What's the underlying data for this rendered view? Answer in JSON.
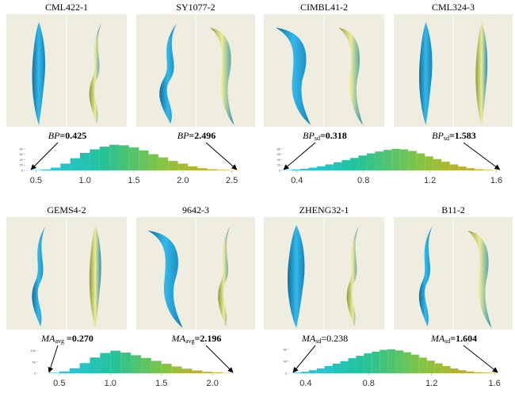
{
  "figure": {
    "quadrants": [
      {
        "panels": [
          {
            "title": "CML422-1"
          },
          {
            "title": "SY1077-2"
          }
        ],
        "labels": [
          {
            "symbol": "BP",
            "value": "=0.425",
            "bold": true
          },
          {
            "symbol": "BP",
            "value": "=2.496",
            "bold": true
          }
        ]
      },
      {
        "panels": [
          {
            "title": "CIMBL41-2"
          },
          {
            "title": "CML324-3"
          }
        ],
        "labels": [
          {
            "symbol": "BP",
            "subscript": "sd",
            "value": "=0.318",
            "bold": true
          },
          {
            "symbol": "BP",
            "subscript": "sd",
            "value": "=1.583",
            "bold": true
          }
        ]
      },
      {
        "panels": [
          {
            "title": "GEMS4-2"
          },
          {
            "title": "9642-3"
          }
        ],
        "labels": [
          {
            "symbol": "MA",
            "subscript": "avg",
            "value": " =0.270",
            "bold": true
          },
          {
            "symbol": "MA",
            "subscript": "avg",
            "value": "=2.196",
            "bold": true
          }
        ]
      },
      {
        "panels": [
          {
            "title": "ZHENG32-1"
          },
          {
            "title": "B11-2"
          }
        ],
        "labels": [
          {
            "symbol": "MA",
            "subscript": "sd",
            "value": "=0.238",
            "bold": false
          },
          {
            "symbol": "MA",
            "subscript": "sd",
            "value": "=1.604",
            "bold": true
          }
        ]
      }
    ]
  },
  "chart_data": [
    {
      "type": "histogram",
      "bins": [
        0.45,
        0.55,
        0.65,
        0.75,
        0.85,
        0.95,
        1.05,
        1.15,
        1.25,
        1.35,
        1.45,
        1.55,
        1.65,
        1.75,
        1.85,
        1.95,
        2.05,
        2.15,
        2.25,
        2.35,
        2.45,
        2.55
      ],
      "counts": [
        1,
        3,
        10,
        25,
        45,
        65,
        78,
        88,
        95,
        93,
        85,
        74,
        60,
        48,
        35,
        25,
        15,
        8,
        4,
        2,
        1
      ],
      "xlim": [
        0.4,
        2.6
      ],
      "xticks": [
        0.5,
        {
          "value": 1,
          "label": "1.0"
        },
        1.5,
        {
          "value": 2,
          "label": "2.0"
        },
        2.5
      ],
      "ylim": [
        0,
        100
      ],
      "yticks": [
        0,
        20,
        40,
        60,
        80
      ],
      "color_stops": [
        "#29c4f0",
        "#22c39a",
        "#8cc43a",
        "#f09a1e"
      ]
    },
    {
      "type": "histogram",
      "bins": [
        0.32,
        0.37,
        0.42,
        0.47,
        0.52,
        0.57,
        0.62,
        0.67,
        0.72,
        0.77,
        0.82,
        0.87,
        0.92,
        0.97,
        1.02,
        1.07,
        1.12,
        1.17,
        1.22,
        1.27,
        1.32,
        1.37,
        1.42,
        1.47,
        1.52,
        1.57,
        1.62
      ],
      "counts": [
        1,
        3,
        6,
        10,
        15,
        22,
        30,
        38,
        46,
        55,
        63,
        70,
        76,
        80,
        78,
        72,
        63,
        52,
        42,
        32,
        22,
        14,
        8,
        4,
        2,
        1
      ],
      "xlim": [
        0.32,
        1.65
      ],
      "xticks": [
        0.4,
        0.8,
        1.2,
        1.6
      ],
      "ylim": [
        0,
        100
      ],
      "yticks": [
        0,
        20,
        40,
        60,
        80
      ],
      "color_stops": [
        "#29c4f0",
        "#22c39a",
        "#8cc43a",
        "#f09a1e"
      ]
    },
    {
      "type": "histogram",
      "bins": [
        0.4,
        0.5,
        0.6,
        0.7,
        0.8,
        0.9,
        1.0,
        1.1,
        1.2,
        1.3,
        1.4,
        1.5,
        1.6,
        1.7,
        1.8,
        1.9,
        2.0,
        2.1,
        2.2
      ],
      "counts": [
        2,
        8,
        22,
        45,
        70,
        90,
        100,
        92,
        80,
        68,
        55,
        42,
        30,
        20,
        12,
        6,
        3,
        1
      ],
      "xlim": [
        0.3,
        2.2
      ],
      "xticks": [
        0.5,
        {
          "value": 1,
          "label": "1.0"
        },
        1.5,
        {
          "value": 2,
          "label": "2.0"
        }
      ],
      "ylim": [
        0,
        120
      ],
      "yticks": [
        0,
        50,
        100
      ],
      "color_stops": [
        "#29c4f0",
        "#22c39a",
        "#8cc43a",
        "#f09a1e"
      ]
    },
    {
      "type": "histogram",
      "bins": [
        0.32,
        0.37,
        0.42,
        0.47,
        0.52,
        0.57,
        0.62,
        0.67,
        0.72,
        0.77,
        0.82,
        0.87,
        0.92,
        0.97,
        1.02,
        1.07,
        1.12,
        1.17,
        1.22,
        1.27,
        1.32,
        1.37,
        1.42,
        1.47,
        1.52,
        1.57,
        1.62
      ],
      "counts": [
        2,
        5,
        10,
        16,
        24,
        32,
        40,
        50,
        58,
        66,
        72,
        78,
        80,
        76,
        70,
        62,
        52,
        42,
        33,
        24,
        16,
        10,
        6,
        3,
        2,
        1
      ],
      "xlim": [
        0.3,
        1.7
      ],
      "xticks": [
        0.4,
        0.8,
        1.2,
        1.6
      ],
      "ylim": [
        0,
        90
      ],
      "yticks": [
        0,
        40,
        80
      ],
      "color_stops": [
        "#29c4f0",
        "#22c39a",
        "#8cc43a",
        "#f09a1e"
      ]
    }
  ]
}
